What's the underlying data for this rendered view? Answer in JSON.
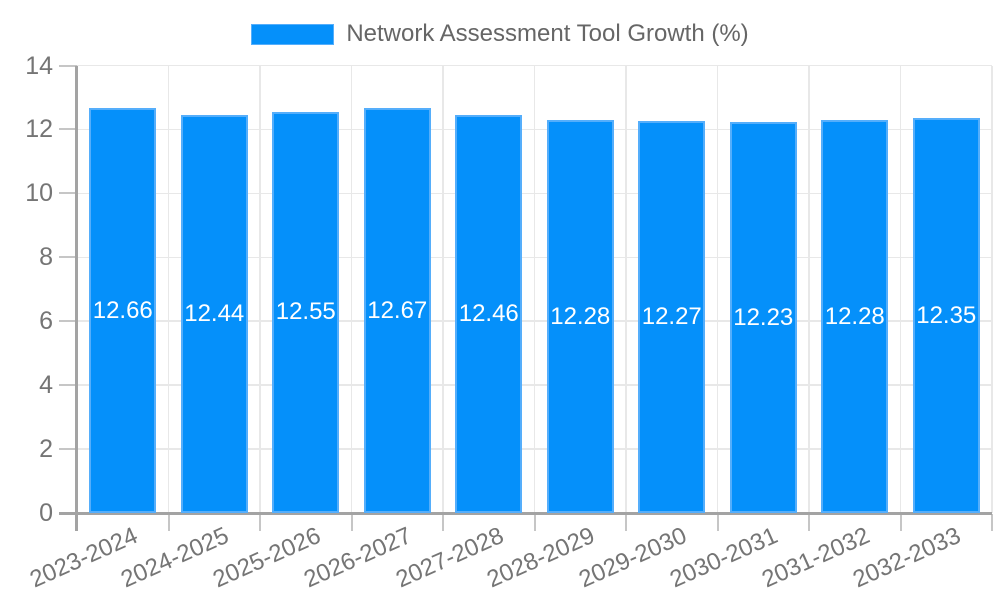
{
  "chart_data": {
    "type": "bar",
    "title": "Network Assessment Tool Growth (%)",
    "categories": [
      "2023-2024",
      "2024-2025",
      "2025-2026",
      "2026-2027",
      "2027-2028",
      "2028-2029",
      "2029-2030",
      "2030-2031",
      "2031-2032",
      "2032-2033"
    ],
    "values": [
      12.66,
      12.44,
      12.55,
      12.67,
      12.46,
      12.28,
      12.27,
      12.23,
      12.28,
      12.35
    ],
    "value_labels": [
      "12.66",
      "12.44",
      "12.55",
      "12.67",
      "12.46",
      "12.28",
      "12.27",
      "12.23",
      "12.28",
      "12.35"
    ],
    "xlabel": "",
    "ylabel": "",
    "ylim": [
      0,
      14
    ],
    "ytick_step": 2,
    "yticks": [
      0,
      2,
      4,
      6,
      8,
      10,
      12,
      14
    ],
    "grid": true,
    "legend_position": "top",
    "colors": {
      "bar_fill": "#0590FA",
      "bar_border": "#55AEFB",
      "value_label_text": "#FFFFFF",
      "grid_line": "#E8E8E8",
      "axis_line": "#A3A3A3",
      "tick_mark": "#C6C6C6",
      "tick_label_text": "#757575",
      "legend_text": "#666666"
    }
  }
}
